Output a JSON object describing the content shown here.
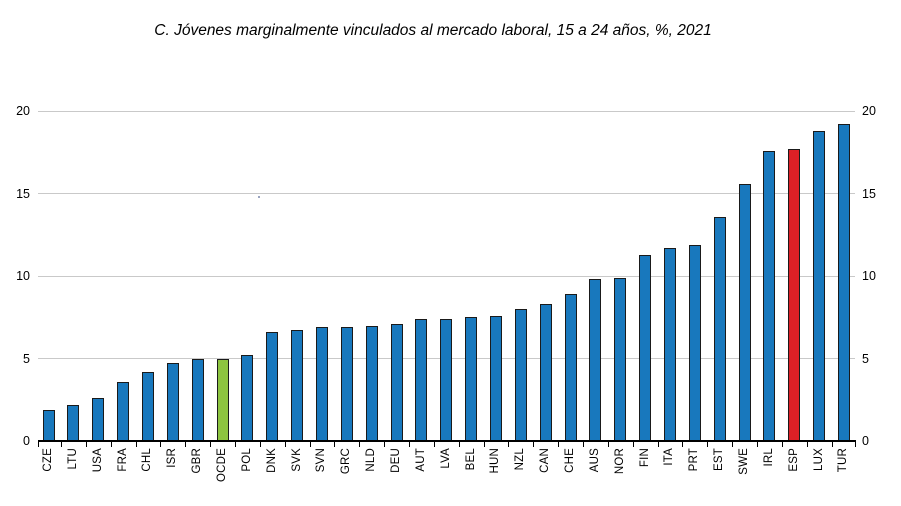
{
  "chart_data": {
    "type": "bar",
    "title": "C. Jóvenes marginalmente vinculados al mercado laboral, 15 a 24 años, %, 2021",
    "categories": [
      "CZE",
      "LTU",
      "USA",
      "FRA",
      "CHL",
      "ISR",
      "GBR",
      "OCDE",
      "POL",
      "DNK",
      "SVK",
      "SVN",
      "GRC",
      "NLD",
      "DEU",
      "AUT",
      "LVA",
      "BEL",
      "HUN",
      "NZL",
      "CAN",
      "CHE",
      "AUS",
      "NOR",
      "FIN",
      "ITA",
      "PRT",
      "EST",
      "SWE",
      "IRL",
      "ESP",
      "LUX",
      "TUR"
    ],
    "values": [
      1.9,
      2.2,
      2.6,
      3.6,
      4.2,
      4.7,
      5.0,
      5.0,
      5.2,
      6.6,
      6.7,
      6.9,
      6.9,
      7.0,
      7.1,
      7.4,
      7.4,
      7.5,
      7.6,
      8.0,
      8.3,
      8.9,
      9.8,
      9.9,
      11.3,
      11.7,
      11.9,
      13.6,
      15.6,
      17.6,
      17.7,
      18.8,
      19.2
    ],
    "highlighted_bars": {
      "OCDE": "#8dc440",
      "ESP": "#dc2026"
    },
    "default_bar_color": "#1878bd",
    "bar_border_color": "#1a1a1a",
    "ylim": [
      0,
      20
    ],
    "yticks": [
      0,
      5,
      10,
      15,
      20
    ],
    "ytick_sides": "both",
    "grid": "horizontal",
    "gridline_color": "#c9c9c9",
    "axis_color": "#000000",
    "x_label_rotation": -90,
    "legend": "none"
  }
}
